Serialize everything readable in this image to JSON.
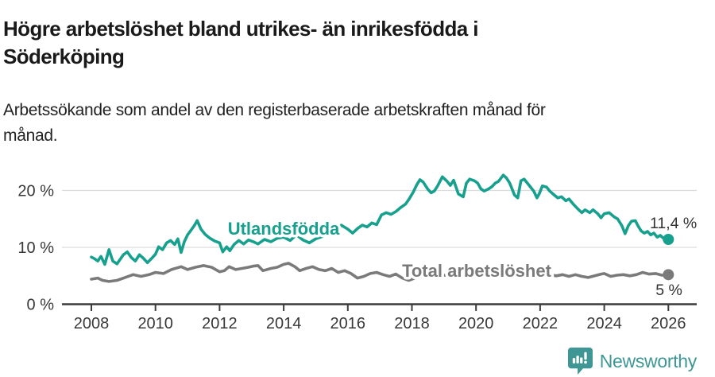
{
  "header": {
    "title_lines": [
      "Högre arbetslöshet bland utrikes- än inrikesfödda i",
      "Söderköping"
    ],
    "subtitle_lines": [
      "Arbetssökande som andel av den registerbaserade arbetskraften månad för",
      "månad."
    ]
  },
  "chart_data": {
    "type": "line",
    "title": "Högre arbetslöshet bland utrikes- än inrikesfödda i Söderköping",
    "subtitle": "Arbetssökande som andel av den registerbaserade arbetskraften månad för månad.",
    "grid": "horizontal",
    "legend_position": "inline-labels",
    "x_axis": {
      "ticks": [
        2008,
        2010,
        2012,
        2014,
        2016,
        2018,
        2020,
        2022,
        2024,
        2026
      ],
      "range": [
        2007.1,
        2026.8
      ]
    },
    "y_axis": {
      "ticks": [
        "0 %",
        "10 %",
        "20 %"
      ],
      "tick_values": [
        0,
        10,
        20
      ],
      "range": [
        0,
        24
      ],
      "unit": "%"
    },
    "series": [
      {
        "name": "Utlandsfödda",
        "color": "#18a08f",
        "end_label": "11,4 %",
        "end_value": 11.4,
        "points": [
          [
            2008.0,
            8.3
          ],
          [
            2008.1,
            8.0
          ],
          [
            2008.2,
            7.6
          ],
          [
            2008.3,
            8.4
          ],
          [
            2008.42,
            7.0
          ],
          [
            2008.55,
            9.6
          ],
          [
            2008.67,
            7.6
          ],
          [
            2008.8,
            7.1
          ],
          [
            2008.9,
            7.9
          ],
          [
            2009.0,
            8.7
          ],
          [
            2009.12,
            9.2
          ],
          [
            2009.25,
            8.2
          ],
          [
            2009.37,
            7.6
          ],
          [
            2009.5,
            8.7
          ],
          [
            2009.62,
            8.1
          ],
          [
            2009.75,
            7.3
          ],
          [
            2009.87,
            8.0
          ],
          [
            2010.0,
            8.8
          ],
          [
            2010.1,
            10.1
          ],
          [
            2010.22,
            9.6
          ],
          [
            2010.35,
            10.8
          ],
          [
            2010.47,
            11.2
          ],
          [
            2010.6,
            10.5
          ],
          [
            2010.7,
            11.5
          ],
          [
            2010.8,
            9.1
          ],
          [
            2010.9,
            11.0
          ],
          [
            2011.0,
            12.2
          ],
          [
            2011.12,
            13.1
          ],
          [
            2011.22,
            13.9
          ],
          [
            2011.3,
            14.7
          ],
          [
            2011.42,
            13.2
          ],
          [
            2011.55,
            12.3
          ],
          [
            2011.7,
            11.6
          ],
          [
            2011.85,
            11.1
          ],
          [
            2012.0,
            10.8
          ],
          [
            2012.1,
            9.2
          ],
          [
            2012.22,
            10.1
          ],
          [
            2012.32,
            9.4
          ],
          [
            2012.45,
            10.5
          ],
          [
            2012.6,
            11.2
          ],
          [
            2012.75,
            10.6
          ],
          [
            2012.9,
            11.3
          ],
          [
            2013.05,
            11.0
          ],
          [
            2013.2,
            10.6
          ],
          [
            2013.4,
            11.4
          ],
          [
            2013.6,
            11.0
          ],
          [
            2013.8,
            11.6
          ],
          [
            2014.0,
            11.8
          ],
          [
            2014.2,
            11.2
          ],
          [
            2014.4,
            12.2
          ],
          [
            2014.6,
            11.3
          ],
          [
            2014.8,
            10.8
          ],
          [
            2015.0,
            11.5
          ],
          [
            2015.2,
            11.9
          ],
          [
            2015.4,
            12.4
          ],
          [
            2015.6,
            13.1
          ],
          [
            2015.8,
            13.9
          ],
          [
            2016.0,
            13.2
          ],
          [
            2016.15,
            12.5
          ],
          [
            2016.3,
            13.3
          ],
          [
            2016.45,
            13.9
          ],
          [
            2016.6,
            13.6
          ],
          [
            2016.75,
            14.3
          ],
          [
            2016.9,
            14.0
          ],
          [
            2017.05,
            15.7
          ],
          [
            2017.2,
            16.1
          ],
          [
            2017.35,
            15.8
          ],
          [
            2017.5,
            16.3
          ],
          [
            2017.65,
            17.0
          ],
          [
            2017.8,
            17.6
          ],
          [
            2017.9,
            18.4
          ],
          [
            2018.05,
            19.8
          ],
          [
            2018.15,
            21.0
          ],
          [
            2018.25,
            21.9
          ],
          [
            2018.35,
            21.5
          ],
          [
            2018.5,
            20.2
          ],
          [
            2018.6,
            19.6
          ],
          [
            2018.7,
            19.9
          ],
          [
            2018.8,
            20.8
          ],
          [
            2018.95,
            22.4
          ],
          [
            2019.1,
            21.6
          ],
          [
            2019.2,
            20.9
          ],
          [
            2019.3,
            21.8
          ],
          [
            2019.45,
            19.4
          ],
          [
            2019.6,
            18.9
          ],
          [
            2019.7,
            21.3
          ],
          [
            2019.8,
            22.0
          ],
          [
            2019.95,
            21.7
          ],
          [
            2020.05,
            21.3
          ],
          [
            2020.15,
            20.3
          ],
          [
            2020.25,
            19.9
          ],
          [
            2020.4,
            20.3
          ],
          [
            2020.5,
            20.7
          ],
          [
            2020.6,
            21.3
          ],
          [
            2020.7,
            21.6
          ],
          [
            2020.85,
            22.7
          ],
          [
            2020.95,
            22.2
          ],
          [
            2021.05,
            21.3
          ],
          [
            2021.2,
            19.2
          ],
          [
            2021.3,
            18.7
          ],
          [
            2021.4,
            21.7
          ],
          [
            2021.5,
            22.0
          ],
          [
            2021.6,
            21.3
          ],
          [
            2021.7,
            20.6
          ],
          [
            2021.8,
            19.9
          ],
          [
            2021.9,
            18.7
          ],
          [
            2021.97,
            19.4
          ],
          [
            2022.07,
            20.8
          ],
          [
            2022.2,
            20.6
          ],
          [
            2022.3,
            19.9
          ],
          [
            2022.4,
            19.4
          ],
          [
            2022.55,
            18.7
          ],
          [
            2022.67,
            18.9
          ],
          [
            2022.8,
            18.2
          ],
          [
            2022.9,
            18.5
          ],
          [
            2023.05,
            17.5
          ],
          [
            2023.17,
            16.8
          ],
          [
            2023.3,
            16.1
          ],
          [
            2023.4,
            16.6
          ],
          [
            2023.55,
            16.1
          ],
          [
            2023.65,
            16.6
          ],
          [
            2023.8,
            15.9
          ],
          [
            2023.9,
            15.2
          ],
          [
            2024.0,
            15.9
          ],
          [
            2024.15,
            16.1
          ],
          [
            2024.3,
            15.4
          ],
          [
            2024.42,
            15.0
          ],
          [
            2024.55,
            13.8
          ],
          [
            2024.65,
            12.4
          ],
          [
            2024.75,
            13.8
          ],
          [
            2024.85,
            14.6
          ],
          [
            2024.97,
            14.7
          ],
          [
            2025.05,
            13.8
          ],
          [
            2025.15,
            12.9
          ],
          [
            2025.25,
            12.5
          ],
          [
            2025.35,
            12.8
          ],
          [
            2025.45,
            12.2
          ],
          [
            2025.55,
            12.5
          ],
          [
            2025.65,
            11.8
          ],
          [
            2025.75,
            12.1
          ],
          [
            2025.85,
            11.6
          ],
          [
            2025.93,
            11.8
          ],
          [
            2026.0,
            11.4
          ]
        ]
      },
      {
        "name": "Total arbetslöshet",
        "color": "#7a7a7a",
        "end_label": "5 %",
        "end_value": 5,
        "points": [
          [
            2008.0,
            4.4
          ],
          [
            2008.2,
            4.6
          ],
          [
            2008.35,
            4.2
          ],
          [
            2008.55,
            4.0
          ],
          [
            2008.8,
            4.2
          ],
          [
            2009.05,
            4.7
          ],
          [
            2009.3,
            5.2
          ],
          [
            2009.55,
            4.9
          ],
          [
            2009.8,
            5.2
          ],
          [
            2010.0,
            5.6
          ],
          [
            2010.25,
            5.4
          ],
          [
            2010.5,
            6.1
          ],
          [
            2010.8,
            6.6
          ],
          [
            2011.0,
            6.1
          ],
          [
            2011.25,
            6.5
          ],
          [
            2011.5,
            6.8
          ],
          [
            2011.75,
            6.5
          ],
          [
            2012.0,
            5.7
          ],
          [
            2012.15,
            5.9
          ],
          [
            2012.3,
            6.6
          ],
          [
            2012.5,
            6.1
          ],
          [
            2012.7,
            6.3
          ],
          [
            2012.9,
            6.5
          ],
          [
            2013.05,
            6.7
          ],
          [
            2013.2,
            6.8
          ],
          [
            2013.35,
            5.9
          ],
          [
            2013.6,
            6.3
          ],
          [
            2013.8,
            6.5
          ],
          [
            2014.0,
            7.0
          ],
          [
            2014.15,
            7.2
          ],
          [
            2014.35,
            6.6
          ],
          [
            2014.5,
            5.9
          ],
          [
            2014.7,
            6.3
          ],
          [
            2014.9,
            6.6
          ],
          [
            2015.1,
            6.1
          ],
          [
            2015.3,
            5.9
          ],
          [
            2015.5,
            6.3
          ],
          [
            2015.7,
            5.6
          ],
          [
            2015.9,
            5.9
          ],
          [
            2016.1,
            5.4
          ],
          [
            2016.3,
            4.6
          ],
          [
            2016.5,
            4.9
          ],
          [
            2016.7,
            5.4
          ],
          [
            2016.9,
            5.6
          ],
          [
            2017.1,
            5.2
          ],
          [
            2017.3,
            4.9
          ],
          [
            2017.5,
            5.3
          ],
          [
            2017.7,
            4.6
          ],
          [
            2017.9,
            4.2
          ],
          [
            2018.1,
            4.6
          ],
          [
            2018.4,
            5.0
          ],
          [
            2018.7,
            4.8
          ],
          [
            2019.0,
            5.1
          ],
          [
            2019.3,
            4.9
          ],
          [
            2019.6,
            5.2
          ],
          [
            2019.9,
            5.4
          ],
          [
            2020.2,
            5.8
          ],
          [
            2020.5,
            5.5
          ],
          [
            2020.8,
            5.7
          ],
          [
            2021.1,
            5.4
          ],
          [
            2021.4,
            5.2
          ],
          [
            2021.7,
            5.0
          ],
          [
            2022.0,
            4.9
          ],
          [
            2022.3,
            5.2
          ],
          [
            2022.5,
            5.0
          ],
          [
            2022.7,
            5.2
          ],
          [
            2022.9,
            4.9
          ],
          [
            2023.1,
            5.2
          ],
          [
            2023.3,
            4.9
          ],
          [
            2023.5,
            4.7
          ],
          [
            2023.7,
            5.0
          ],
          [
            2023.9,
            5.3
          ],
          [
            2024.0,
            5.4
          ],
          [
            2024.2,
            4.9
          ],
          [
            2024.4,
            5.1
          ],
          [
            2024.6,
            5.2
          ],
          [
            2024.8,
            5.0
          ],
          [
            2025.0,
            5.2
          ],
          [
            2025.2,
            5.6
          ],
          [
            2025.4,
            5.3
          ],
          [
            2025.6,
            5.4
          ],
          [
            2025.8,
            5.1
          ],
          [
            2026.0,
            5.2
          ]
        ]
      }
    ],
    "colors": {
      "grid": "#dcdcdc",
      "axis": "#3c3c3c",
      "axis_text": "#383838",
      "end_label_text": "#333333"
    }
  },
  "footer": {
    "brand": "Newsworthy",
    "brand_color": "#3e9794",
    "logo_icon": "speech-bubble-bar-chart-icon"
  }
}
